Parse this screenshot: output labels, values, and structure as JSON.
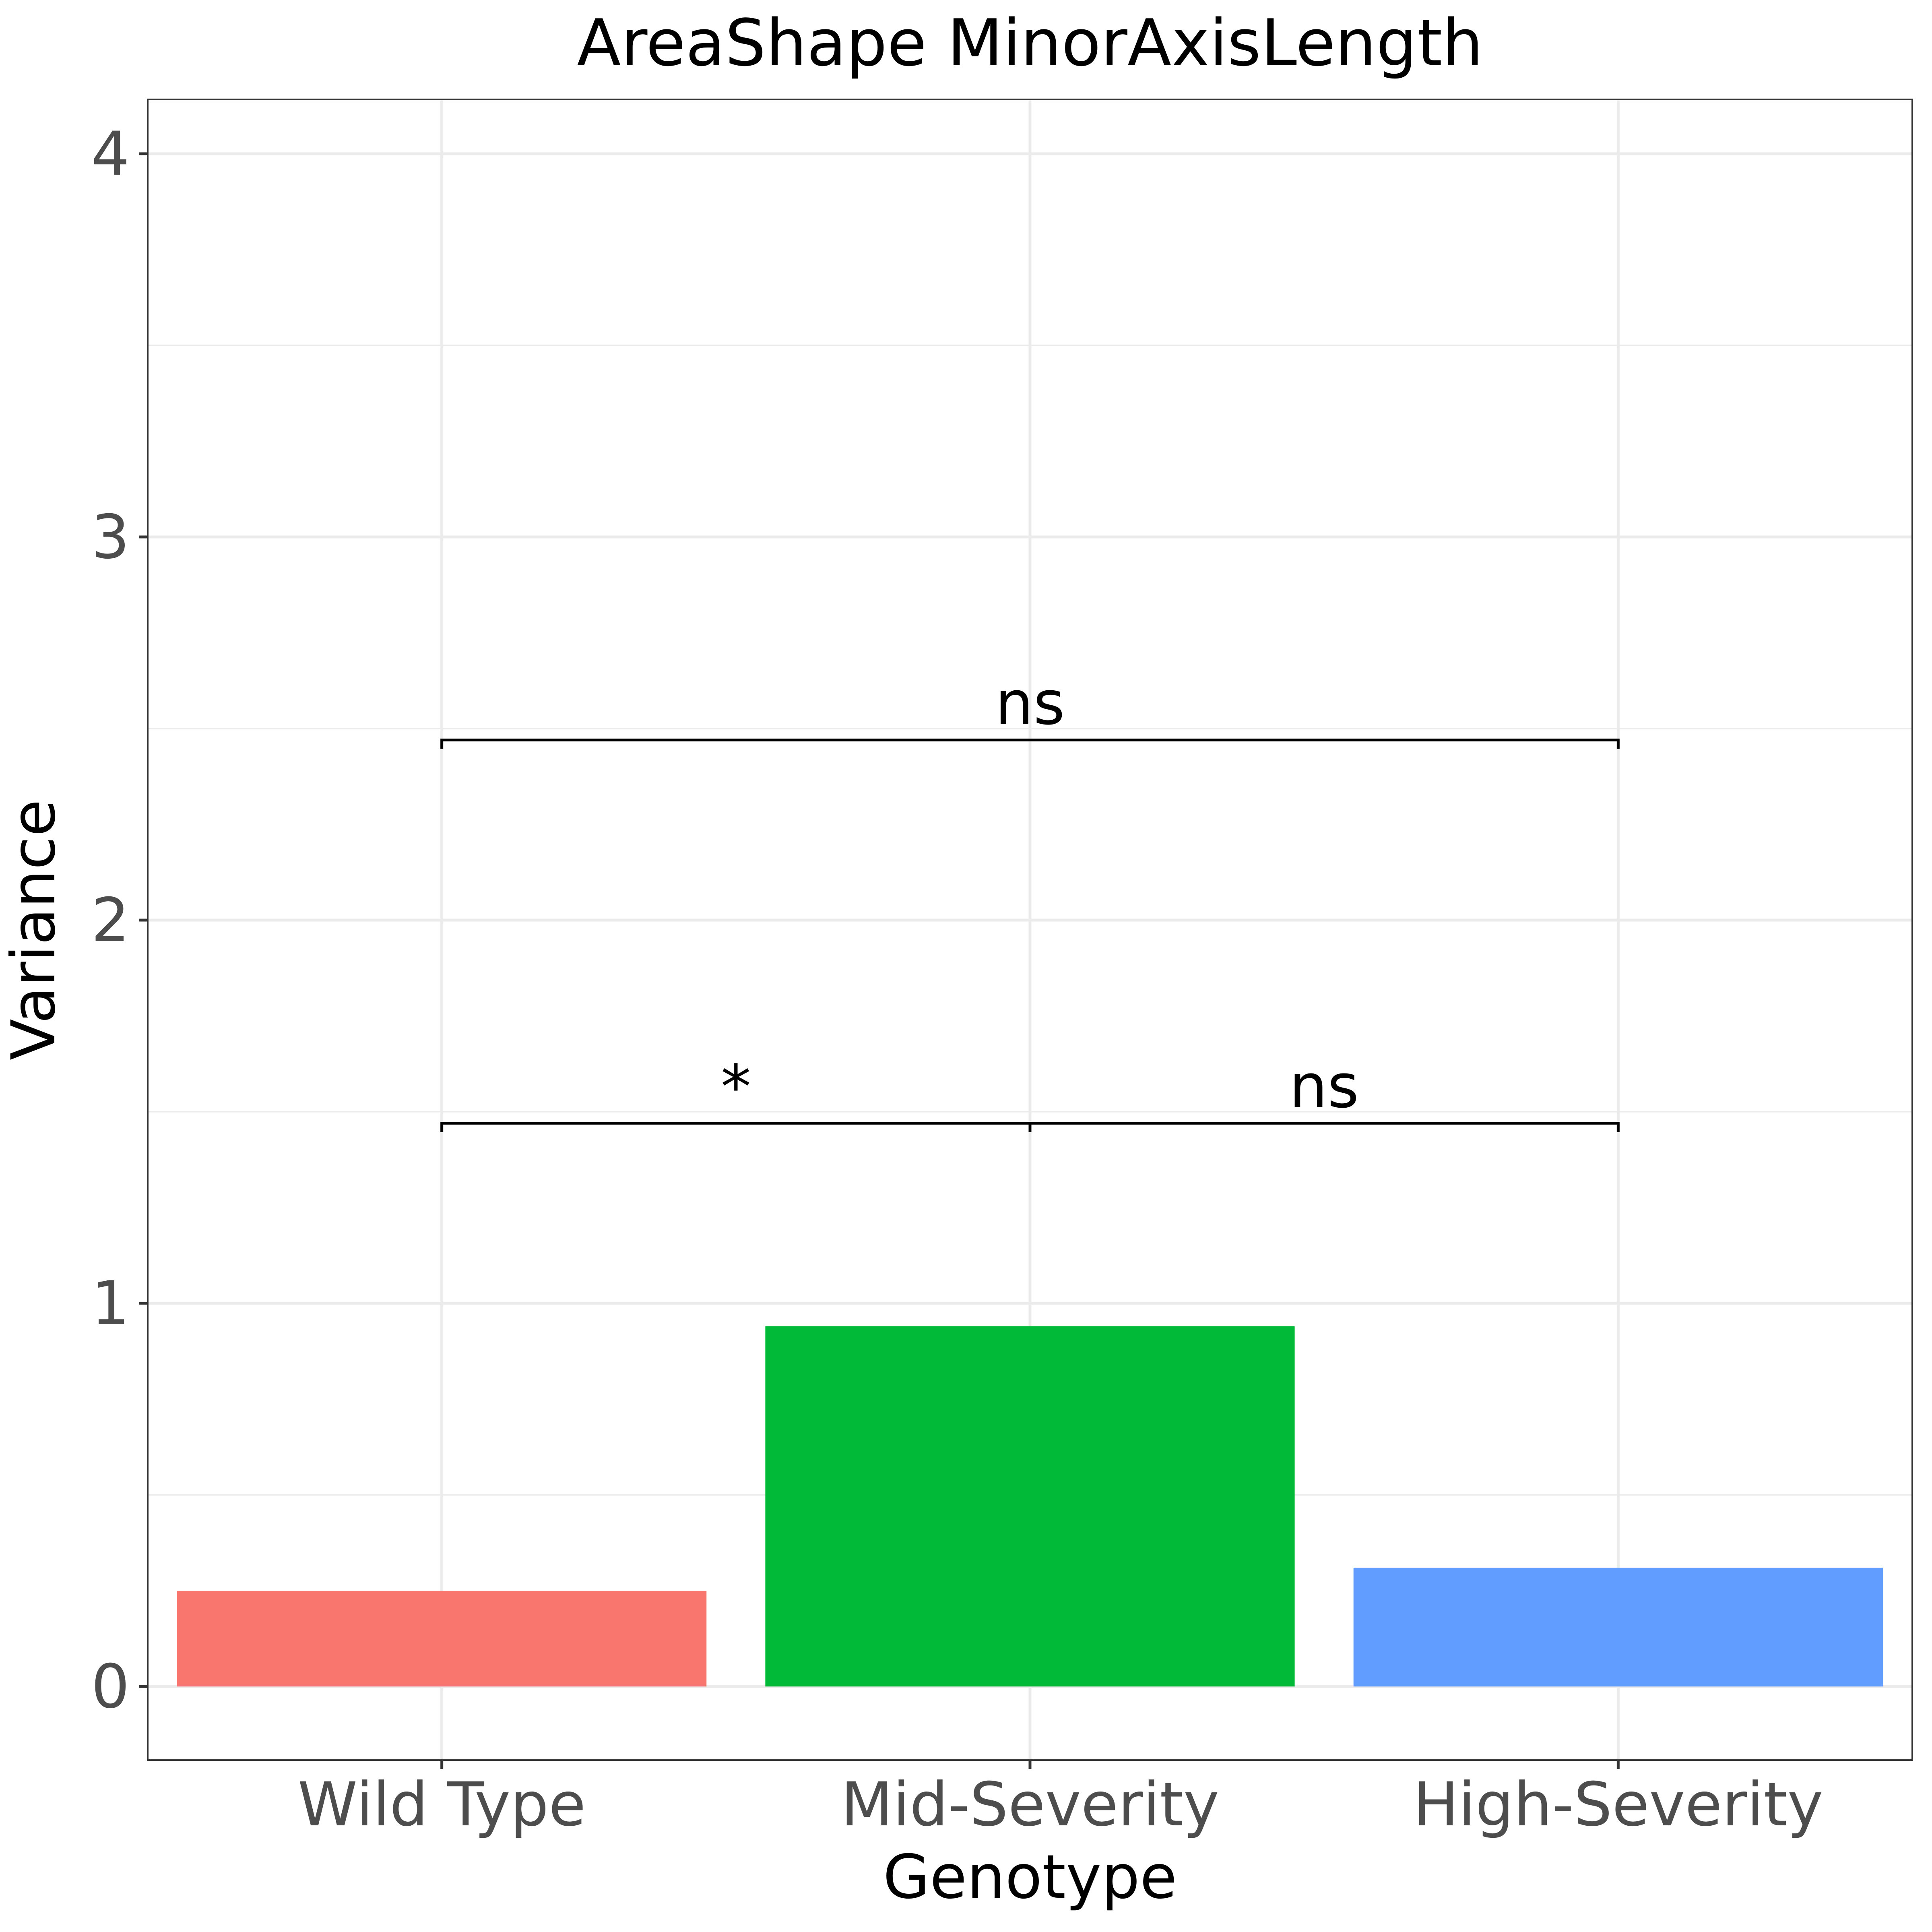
{
  "chart_data": {
    "type": "bar",
    "title": "AreaShape MinorAxisLength",
    "xlabel": "Genotype",
    "ylabel": "Variance",
    "categories": [
      "Wild Type",
      "Mid-Severity",
      "High-Severity"
    ],
    "values": [
      0.25,
      0.94,
      0.31
    ],
    "colors": [
      "#F8766D",
      "#00BA38",
      "#619CFF"
    ],
    "ylim": [
      -0.2,
      4.15
    ],
    "yticks": [
      0,
      1,
      2,
      3,
      4
    ],
    "ytick_labels": [
      "0",
      "1",
      "2",
      "3",
      "4"
    ],
    "grid": true,
    "significance": [
      {
        "from": 0,
        "to": 1,
        "y": 1.47,
        "label": "*"
      },
      {
        "from": 1,
        "to": 2,
        "y": 1.47,
        "label": "ns"
      },
      {
        "from": 0,
        "to": 2,
        "y": 2.47,
        "label": "ns"
      }
    ]
  }
}
